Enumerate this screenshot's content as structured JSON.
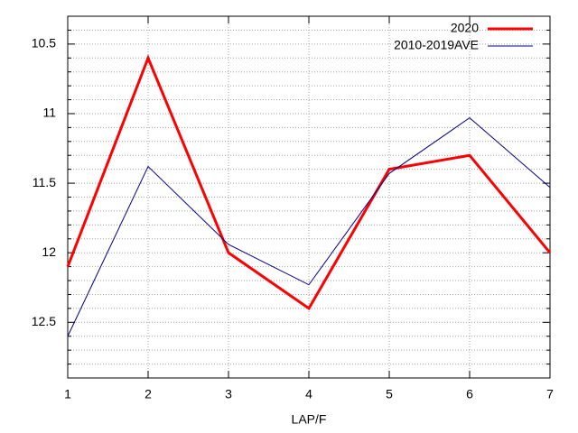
{
  "chart_data": {
    "type": "line",
    "x_label": "LAP/F",
    "x": [
      1,
      2,
      3,
      4,
      5,
      6,
      7
    ],
    "xlim": [
      1,
      7
    ],
    "xticks": [
      1,
      2,
      3,
      4,
      5,
      6,
      7
    ],
    "ylim": [
      12.9,
      10.3
    ],
    "yticks": [
      10.5,
      11,
      11.5,
      12,
      12.5
    ],
    "yminorticks": [
      10.4,
      10.6,
      10.7,
      10.8,
      10.9,
      11.1,
      11.2,
      11.3,
      11.4,
      11.6,
      11.7,
      11.8,
      11.9,
      12.1,
      12.2,
      12.3,
      12.4,
      12.6,
      12.7,
      12.8
    ],
    "grid": true,
    "legend": "top-right",
    "series": [
      {
        "name": "2020",
        "color": "#ff0000",
        "width": 3,
        "values": [
          12.1,
          10.6,
          12.0,
          12.4,
          11.4,
          11.3,
          12.0
        ]
      },
      {
        "name": "2010-2019AVE",
        "color": "#00008b",
        "width": 1,
        "values": [
          12.6,
          11.38,
          11.94,
          12.23,
          11.43,
          11.03,
          11.53
        ]
      }
    ]
  }
}
